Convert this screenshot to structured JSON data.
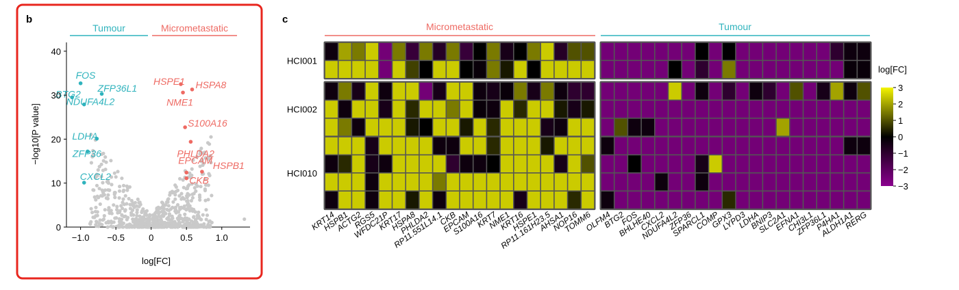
{
  "colors": {
    "tumour": "#2fb3bd",
    "micrometastatic": "#ee6a63",
    "panel_border": "#e8261e",
    "neutral_point": "#c9c9c9",
    "heat_low": "#8a008e",
    "heat_mid": "#000000",
    "heat_high": "#f4f400"
  },
  "panel_b": {
    "label": "b",
    "group_left": "Tumour",
    "group_right": "Micrometastatic"
  },
  "panel_c": {
    "label": "c",
    "group_left": "Micrometastatic",
    "group_right": "Tumour",
    "legend_title": "log[FC]"
  },
  "chart_data": [
    {
      "type": "scatter",
      "xlabel": "log[FC]",
      "ylabel": "−log10[P value]",
      "xlim": [
        -1.2,
        1.4
      ],
      "ylim": [
        0,
        42
      ],
      "x_ticks": [
        "−1.0",
        "−0.5",
        "0",
        "0.5",
        "1.0"
      ],
      "x_tick_values": [
        -1.0,
        -0.5,
        0,
        0.5,
        1.0
      ],
      "y_ticks": [
        "0",
        "10",
        "20",
        "30",
        "40"
      ],
      "y_tick_values": [
        0,
        10,
        20,
        30,
        40
      ],
      "grid": false,
      "labeled_points": [
        {
          "label": "FOS",
          "x": -1.0,
          "y": 32.7,
          "group": "tumour"
        },
        {
          "label": "BTG2",
          "x": -1.12,
          "y": 29.5,
          "group": "tumour"
        },
        {
          "label": "ZFP36L1",
          "x": -0.7,
          "y": 30.3,
          "group": "tumour"
        },
        {
          "label": "NDUFA4L2",
          "x": -0.95,
          "y": 27.9,
          "group": "tumour"
        },
        {
          "label": "LDHA",
          "x": -0.77,
          "y": 20.1,
          "group": "tumour"
        },
        {
          "label": "ZFP36",
          "x": -0.9,
          "y": 17.2,
          "group": "tumour"
        },
        {
          "label": "CXCL2",
          "x": -0.95,
          "y": 10.1,
          "group": "tumour"
        },
        {
          "label": "HSPE1",
          "x": 0.42,
          "y": 32.5,
          "group": "micrometastatic"
        },
        {
          "label": "HSPA8",
          "x": 0.58,
          "y": 31.3,
          "group": "micrometastatic"
        },
        {
          "label": "NME1",
          "x": 0.45,
          "y": 30.6,
          "group": "micrometastatic"
        },
        {
          "label": "S100A16",
          "x": 0.48,
          "y": 22.7,
          "group": "micrometastatic"
        },
        {
          "label": "PHLDA2",
          "x": 0.56,
          "y": 19.4,
          "group": "micrometastatic"
        },
        {
          "label": "EPCAM",
          "x": 0.5,
          "y": 12.4,
          "group": "micrometastatic"
        },
        {
          "label": "HSPB1",
          "x": 0.72,
          "y": 12.6,
          "group": "micrometastatic"
        },
        {
          "label": "CKB",
          "x": 0.5,
          "y": 11.1,
          "group": "micrometastatic"
        }
      ]
    },
    {
      "type": "heatmap",
      "legend_title": "log[FC]",
      "color_range": [
        -3,
        3
      ],
      "legend_ticks": [
        "3",
        "2",
        "1",
        "0",
        "−1",
        "−2",
        "−3"
      ],
      "legend_tick_values": [
        3,
        2,
        1,
        0,
        -1,
        -2,
        -3
      ],
      "column_groups": [
        {
          "name": "Micrometastatic",
          "genes": [
            "KRT14",
            "HSPB1",
            "ACTG2",
            "RGS5",
            "WFDC21P",
            "KRT17",
            "HSPA8",
            "PHLDA2",
            "RP11.551L14.1",
            "CKB",
            "EPCAM",
            "S100A16",
            "KRT7",
            "NME1",
            "KRT16",
            "HSPE1",
            "RP11.161H23.5",
            "AHSA1",
            "NOP16",
            "TOMM6"
          ]
        },
        {
          "name": "Tumour",
          "genes": [
            "OLFM4",
            "BTG2",
            "FOS",
            "BHLHE40",
            "CXCL2",
            "NDUFA4L2",
            "ZFP36",
            "SPARCL1",
            "COMP",
            "GPX3",
            "LYPD3",
            "LDHA",
            "BNIP3",
            "SLC2A1",
            "EFNA1",
            "CHI3L1",
            "ZFP36L1",
            "P4HA1",
            "ALDH1A1",
            "RERG"
          ]
        }
      ],
      "row_groups": [
        {
          "name": "HCI001",
          "rows": [
            [
              -0.3,
              2,
              1.5,
              2.5,
              -2.5,
              1.5,
              -1.2,
              1.5,
              -0.8,
              1.5,
              -1.2,
              0,
              1.5,
              -0.5,
              0,
              1.5,
              2.5,
              -0.8,
              1,
              1,
              -2.5,
              -2.5,
              -2.5,
              -2.5,
              -2.5,
              -2.5,
              -2.5,
              0,
              -2.5,
              0,
              -2.5,
              -2.5,
              -2.5,
              -2.5,
              -2.5,
              -2.5,
              -2.5,
              -1,
              -0.3,
              -0.3
            ],
            [
              2.5,
              2.5,
              2.5,
              2.5,
              -2.5,
              2.5,
              0.8,
              0,
              2.5,
              2.5,
              0,
              -0.2,
              1.5,
              0.3,
              2.5,
              0,
              2.5,
              2.5,
              2.5,
              2.5,
              -2.5,
              -2.5,
              -2.5,
              -2.5,
              -2.5,
              0,
              -2.5,
              -1,
              -2.5,
              1.5,
              -2.5,
              -2.5,
              -2.5,
              -2.5,
              -2.5,
              -2.5,
              -2.5,
              -2.5,
              -0.2,
              -0.2
            ]
          ]
        },
        {
          "name": "HCI002",
          "rows": [
            [
              -0.3,
              1.5,
              -0.5,
              2.5,
              -0.3,
              2.5,
              2.5,
              -2.5,
              -0.5,
              2.5,
              2.5,
              -0.3,
              -0.5,
              -0.2,
              1.5,
              -0.5,
              1.5,
              -0.3,
              -1,
              -1,
              -2.5,
              -2.5,
              -2.5,
              -2.5,
              -2.5,
              2.5,
              -2.5,
              -0.3,
              -2.5,
              -1,
              -2.5,
              -0.3,
              -1,
              -2.5,
              1,
              -2.5,
              -0.5,
              2,
              -0.3,
              1
            ],
            [
              2.5,
              -0.3,
              2.5,
              2.5,
              -0.5,
              2.5,
              0.5,
              2.5,
              2.5,
              1.5,
              2.5,
              -0.2,
              -0.3,
              2.5,
              0.5,
              2.5,
              2.5,
              0.3,
              -0.5,
              0.3,
              -2.5,
              -2.5,
              -2.5,
              -2.5,
              -2.5,
              -2.5,
              -2.5,
              -2.5,
              -2.5,
              -2.5,
              -2.5,
              -2.5,
              -2.5,
              -2.5,
              -2.5,
              -2.5,
              -2.5,
              -2.5,
              -2.5,
              -2.5
            ],
            [
              2.5,
              1.5,
              -0.3,
              2.5,
              2.5,
              2.5,
              0.3,
              0,
              2.5,
              2.5,
              0.3,
              2.5,
              0.5,
              2.5,
              2.5,
              2.5,
              -0.5,
              -0.3,
              2.5,
              2.5,
              -2.5,
              1,
              -0.3,
              -0.3,
              -2.5,
              -2.5,
              -2.5,
              -2.5,
              -2.5,
              -2.5,
              -2.5,
              -2.5,
              -2.5,
              2,
              -2.5,
              -2.5,
              -2.5,
              -2.5,
              -2.5,
              -2.5
            ]
          ]
        },
        {
          "name": "HCI010",
          "rows": [
            [
              2.5,
              2.5,
              2.5,
              -0.5,
              2.5,
              2.5,
              2.5,
              2.5,
              -0.3,
              -0.3,
              2.5,
              2.5,
              0.5,
              2.5,
              2.5,
              2.5,
              0.3,
              2.5,
              2.5,
              2.5,
              -0.3,
              -2.5,
              -2.5,
              -2.5,
              -2.5,
              -2.5,
              -2.5,
              -2.5,
              -2.5,
              -2.5,
              -2.5,
              -2.5,
              -2.5,
              -2.5,
              -2.5,
              -2.5,
              -2.5,
              -2.5,
              -0.3,
              -0.3
            ],
            [
              -0.3,
              0.5,
              2.5,
              -0.5,
              -0.3,
              2.5,
              2.5,
              2.5,
              2.5,
              -1,
              -0.3,
              -0.3,
              0,
              2.5,
              2.5,
              2.5,
              2.5,
              -0.5,
              2.5,
              1,
              -2.5,
              -2.5,
              0,
              -2.5,
              -2.5,
              -2.5,
              -2.5,
              -0.5,
              2.5,
              -2.5,
              -2.5,
              -2.5,
              -2.5,
              -2.5,
              -2.5,
              -2.5,
              -2.5,
              -2.5,
              -2.5,
              -2.5
            ],
            [
              2.5,
              2.5,
              2.5,
              -0.3,
              2.5,
              2.5,
              2.5,
              2.5,
              1.5,
              2.5,
              2.5,
              2.5,
              2.5,
              2.5,
              2.5,
              2.5,
              2.5,
              2.5,
              2.5,
              2.5,
              -2.5,
              -2.5,
              -2.5,
              -2.5,
              -0.3,
              -2.5,
              -2.5,
              -0.3,
              -2.5,
              -2.5,
              -2.5,
              -2.5,
              -2.5,
              -2.5,
              -2.5,
              -2.5,
              -2.5,
              -2.5,
              -2.5,
              -2.5
            ],
            [
              -0.3,
              2.5,
              2.5,
              -0.3,
              2.5,
              2.5,
              0.3,
              2.5,
              -0.3,
              2.5,
              2.5,
              2.5,
              2.5,
              2.5,
              -0.5,
              2.5,
              2.5,
              2.5,
              0.5,
              2.5,
              -0.3,
              -2.5,
              -2.5,
              -2.5,
              -2.5,
              -2.5,
              -2.5,
              -2.5,
              -2.5,
              0.5,
              -2.5,
              -2.5,
              -2.5,
              -2.5,
              -2.5,
              -2.5,
              -2.5,
              -2.5,
              -2.5,
              -2.5
            ]
          ]
        }
      ]
    }
  ]
}
